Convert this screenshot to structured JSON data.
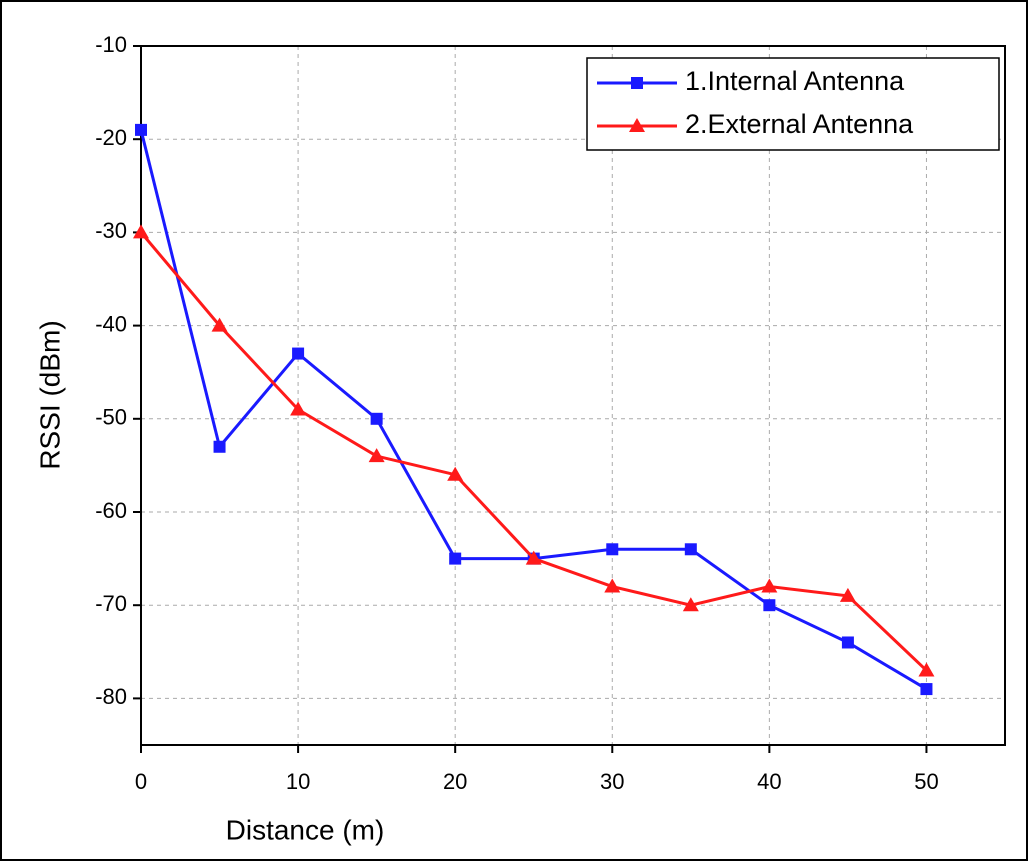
{
  "chart_data": {
    "type": "line",
    "x_label": "Distance (m)",
    "y_label": "RSSI (dBm)",
    "x": [
      0,
      5,
      10,
      15,
      20,
      25,
      30,
      35,
      40,
      45,
      50
    ],
    "series": [
      {
        "name": "1.Internal Antenna",
        "color": "#1a1aff",
        "marker": "square",
        "values": [
          -19,
          -53,
          -43,
          -50,
          -65,
          -65,
          -64,
          -64,
          -70,
          -74,
          -79
        ]
      },
      {
        "name": "2.External Antenna",
        "color": "#ff1a1a",
        "marker": "triangle",
        "values": [
          -30,
          -40,
          -49,
          -54,
          -56,
          -65,
          -68,
          -70,
          -68,
          -69,
          -77
        ]
      }
    ],
    "xlim": [
      0,
      55
    ],
    "xticks": [
      0,
      10,
      20,
      30,
      40,
      50
    ],
    "ylim": [
      -85,
      -10
    ],
    "yticks": [
      -80,
      -70,
      -60,
      -50,
      -40,
      -30,
      -20,
      -10
    ],
    "grid": true,
    "legend": "top-right"
  }
}
